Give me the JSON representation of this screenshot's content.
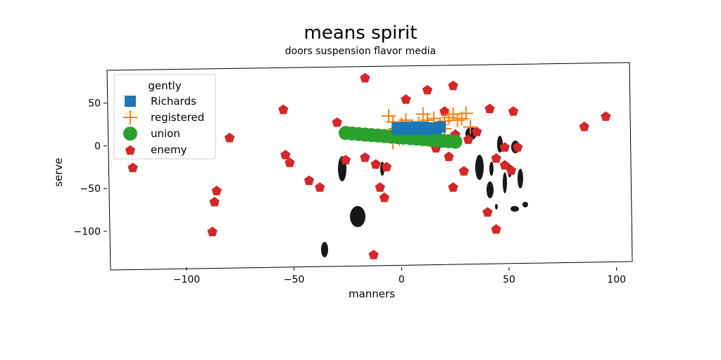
{
  "chart_data": {
    "type": "scatter",
    "title": "means spirit",
    "subtitle": "doors suspension flavor media",
    "xlabel": "manners",
    "ylabel": "serve",
    "xlim": [
      -137,
      106
    ],
    "ylim": [
      -142,
      90
    ],
    "xticks": [
      -100,
      -50,
      0,
      50,
      100
    ],
    "yticks": [
      50,
      0,
      -50,
      -100
    ],
    "grid": false,
    "legend": {
      "title": "gently",
      "placement": "top-left"
    },
    "series": [
      {
        "name": "Richards",
        "marker": "square",
        "color": "#1f77b4",
        "points": [
          [
            -2,
            21
          ],
          [
            0,
            20
          ],
          [
            2,
            22
          ],
          [
            4,
            19
          ],
          [
            6,
            21
          ],
          [
            8,
            20
          ],
          [
            10,
            22
          ],
          [
            12,
            19
          ],
          [
            14,
            21
          ],
          [
            16,
            20
          ],
          [
            18,
            22
          ],
          [
            -1,
            19
          ],
          [
            3,
            20
          ],
          [
            7,
            22
          ],
          [
            11,
            20
          ],
          [
            15,
            21
          ]
        ]
      },
      {
        "name": "registered",
        "marker": "plus",
        "color": "#ff7f0e",
        "points": [
          [
            -6,
            35
          ],
          [
            -4,
            28
          ],
          [
            0,
            25
          ],
          [
            2,
            30
          ],
          [
            5,
            23
          ],
          [
            8,
            26
          ],
          [
            10,
            37
          ],
          [
            12,
            30
          ],
          [
            15,
            32
          ],
          [
            18,
            25
          ],
          [
            20,
            29
          ],
          [
            22,
            33
          ],
          [
            24,
            37
          ],
          [
            26,
            30
          ],
          [
            28,
            32
          ],
          [
            30,
            38
          ],
          [
            32,
            22
          ],
          [
            -3,
            20
          ],
          [
            -4,
            4
          ],
          [
            -1,
            8
          ],
          [
            4,
            16
          ],
          [
            13,
            16
          ],
          [
            20,
            20
          ]
        ]
      },
      {
        "name": "union",
        "marker": "circle",
        "color": "#2ca02c",
        "points": [
          [
            -26,
            15
          ],
          [
            -23,
            14.4
          ],
          [
            -20,
            13.8
          ],
          [
            -17,
            13.2
          ],
          [
            -14,
            12.6
          ],
          [
            -11,
            12
          ],
          [
            -8,
            11.4
          ],
          [
            -5,
            10.8
          ],
          [
            -2,
            10.2
          ],
          [
            1,
            9.6
          ],
          [
            4,
            9
          ],
          [
            7,
            8.4
          ],
          [
            10,
            7.8
          ],
          [
            13,
            7.2
          ],
          [
            16,
            6.6
          ],
          [
            19,
            6
          ],
          [
            22,
            5.4
          ],
          [
            25,
            4.8
          ]
        ]
      },
      {
        "name": "enemy",
        "marker": "pentagon",
        "color": "#d62728",
        "points": [
          [
            -125,
            -25
          ],
          [
            -86,
            -52
          ],
          [
            -87,
            -65
          ],
          [
            -88,
            -100
          ],
          [
            -80,
            10
          ],
          [
            -55,
            43
          ],
          [
            -54,
            -10
          ],
          [
            -52,
            -19
          ],
          [
            -43,
            -40
          ],
          [
            -38,
            -48
          ],
          [
            -30,
            28
          ],
          [
            -26,
            -16
          ],
          [
            -17,
            80
          ],
          [
            -17,
            -13
          ],
          [
            -12,
            -21
          ],
          [
            -10,
            -48
          ],
          [
            -8,
            -60
          ],
          [
            -7,
            -24
          ],
          [
            -13,
            -127
          ],
          [
            2,
            55
          ],
          [
            12,
            66
          ],
          [
            24,
            71
          ],
          [
            20,
            41
          ],
          [
            25,
            14
          ],
          [
            22,
            -12
          ],
          [
            29,
            -29
          ],
          [
            24,
            -48
          ],
          [
            31,
            8
          ],
          [
            35,
            17
          ],
          [
            41,
            44
          ],
          [
            44,
            -14
          ],
          [
            40,
            -77
          ],
          [
            44,
            -97
          ],
          [
            48,
            -22
          ],
          [
            48,
            -1
          ],
          [
            52,
            41
          ],
          [
            51,
            -28
          ],
          [
            54,
            -1
          ],
          [
            85,
            23
          ],
          [
            95,
            35
          ],
          [
            16,
            -2
          ]
        ]
      }
    ]
  }
}
